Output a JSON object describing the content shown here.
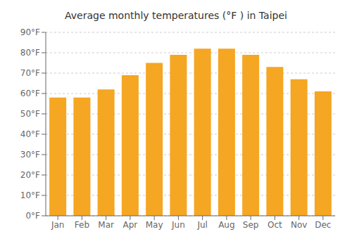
{
  "chart_data": {
    "type": "bar",
    "title": "Average monthly temperatures (°F ) in Taipei",
    "categories": [
      "Jan",
      "Feb",
      "Mar",
      "Apr",
      "May",
      "Jun",
      "Jul",
      "Aug",
      "Sep",
      "Oct",
      "Nov",
      "Dec"
    ],
    "values": [
      58,
      58,
      62,
      69,
      75,
      79,
      82,
      82,
      79,
      73,
      67,
      61
    ],
    "color": "#F5A623",
    "ylim": [
      0,
      90
    ],
    "yticks": [
      {
        "value": 0,
        "label": "0°F"
      },
      {
        "value": 10,
        "label": "10°F"
      },
      {
        "value": 20,
        "label": "20°F"
      },
      {
        "value": 30,
        "label": "30°F"
      },
      {
        "value": 40,
        "label": "40°F"
      },
      {
        "value": 50,
        "label": "50°F"
      },
      {
        "value": 60,
        "label": "60°F"
      },
      {
        "value": 70,
        "label": "70°F"
      },
      {
        "value": 80,
        "label": "80°F"
      },
      {
        "value": 90,
        "label": "90°F"
      }
    ],
    "grid": true
  }
}
